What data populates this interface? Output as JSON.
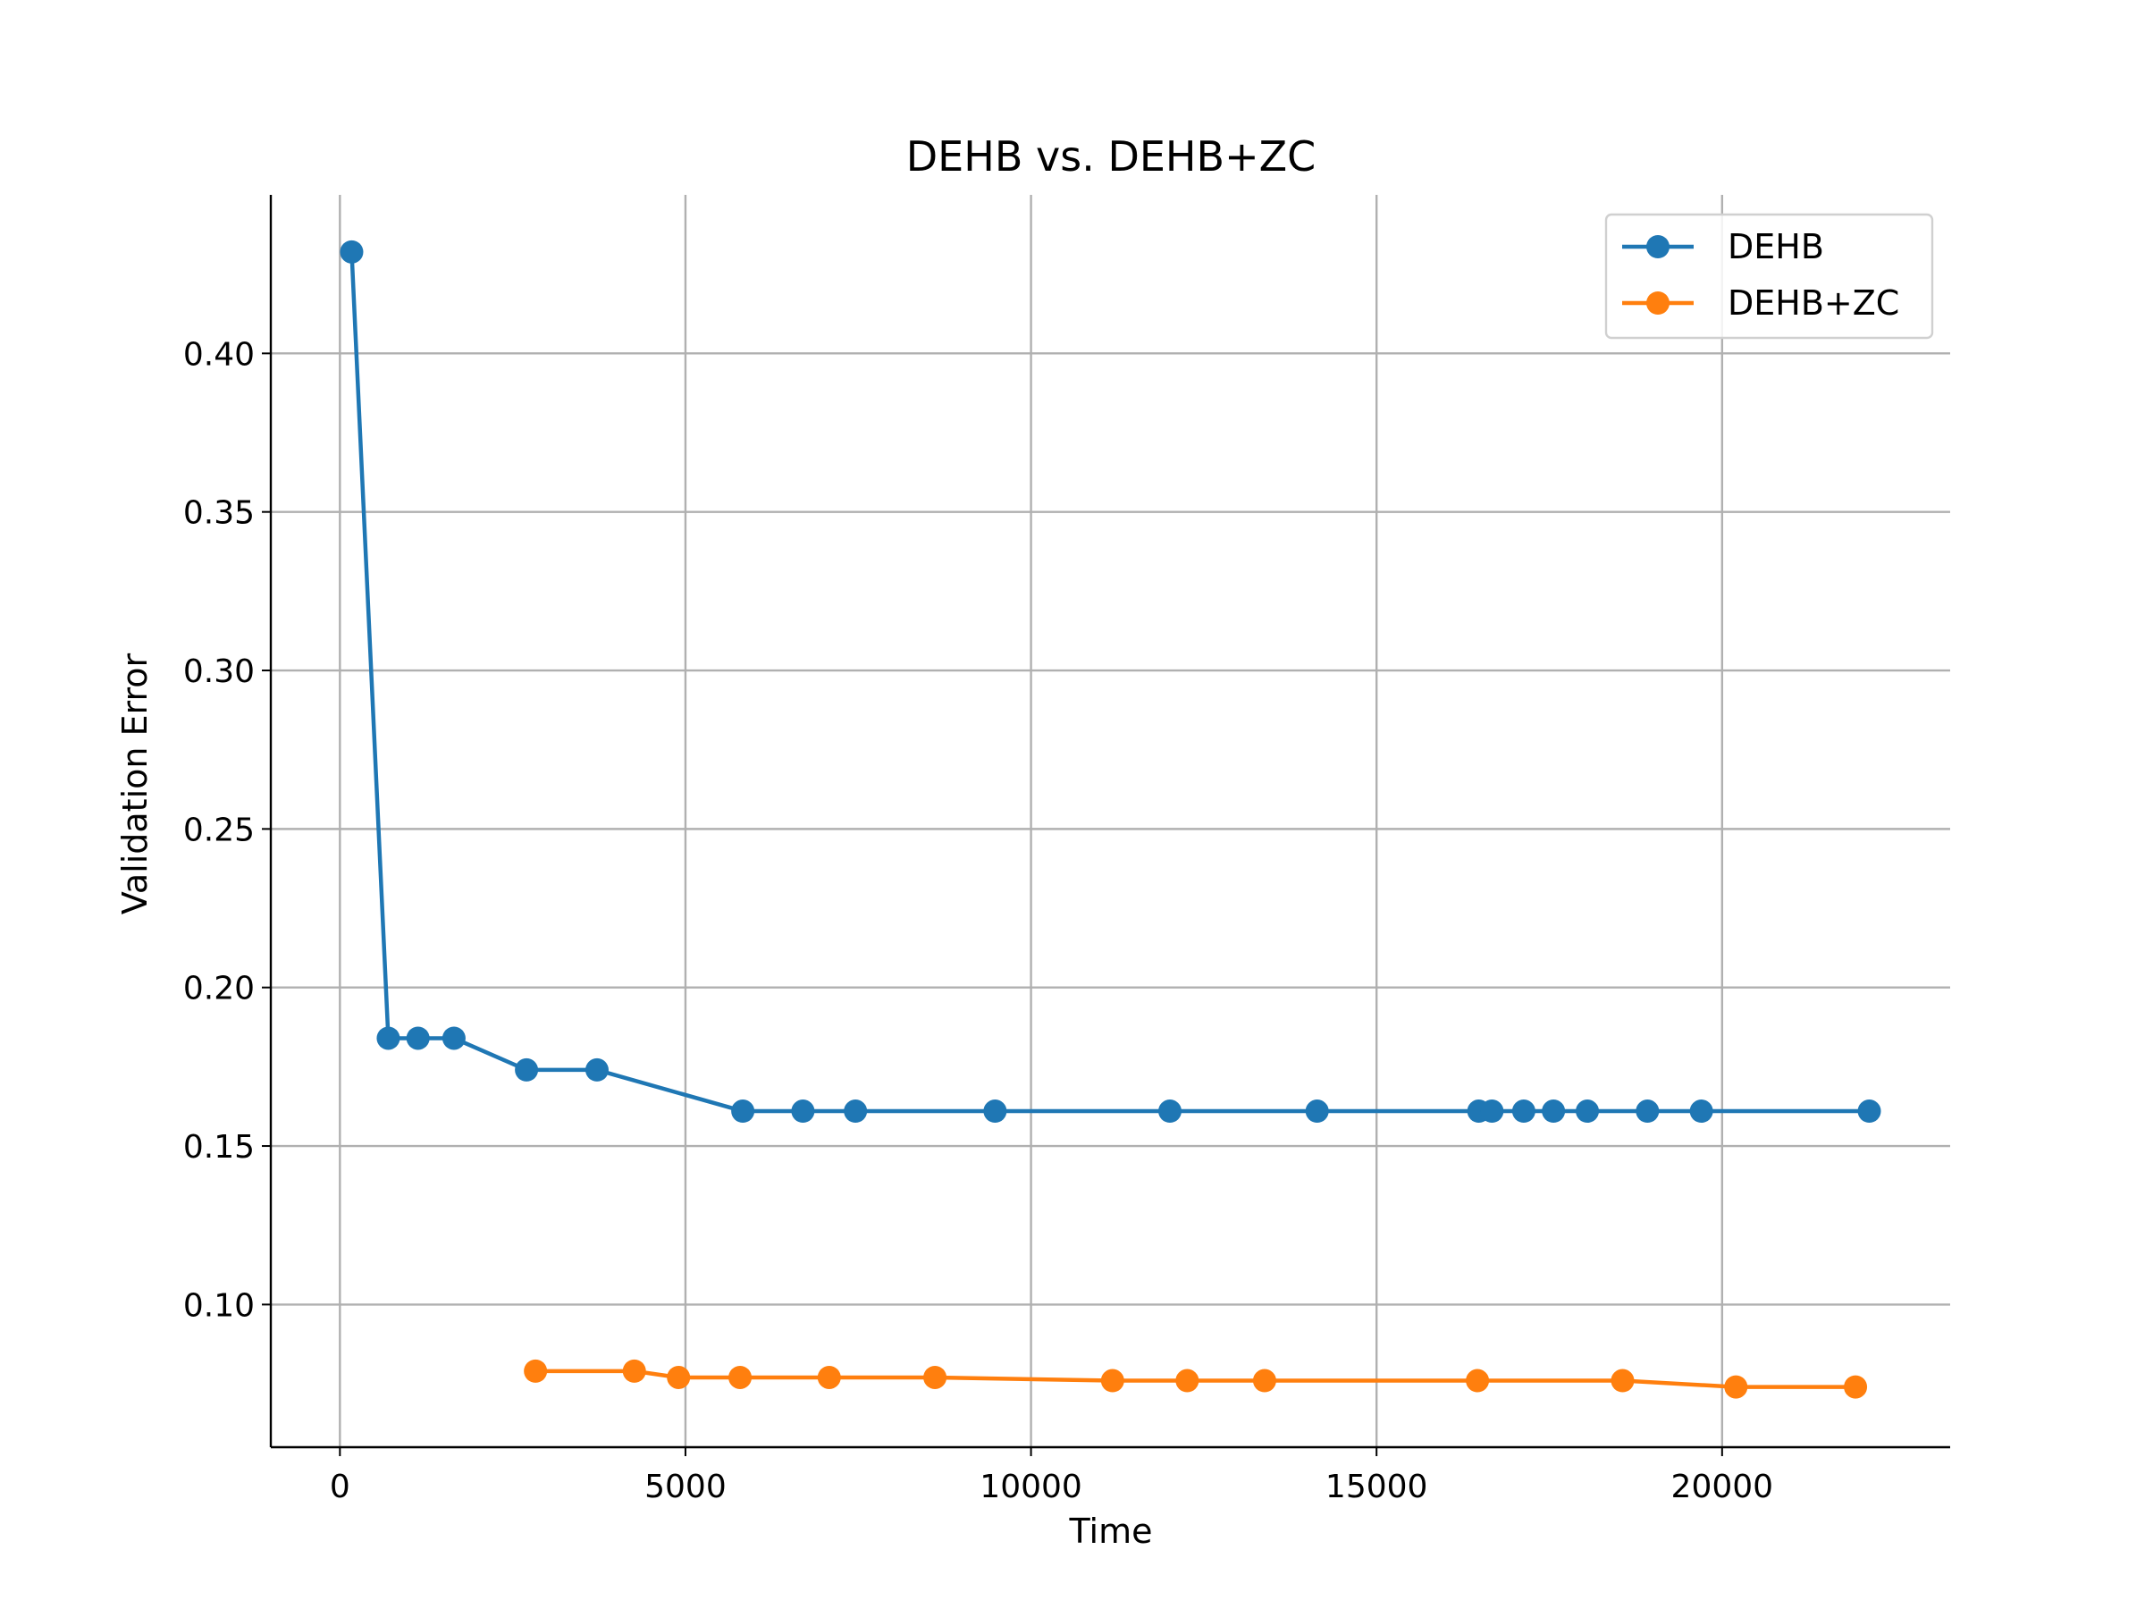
{
  "chart_data": {
    "type": "line",
    "title": "DEHB vs. DEHB+ZC",
    "xlabel": "Time",
    "ylabel": "Validation Error",
    "xlim": [
      -1000,
      23300
    ],
    "ylim": [
      0.055,
      0.45
    ],
    "xticks": [
      0,
      5000,
      10000,
      15000,
      20000
    ],
    "yticks": [
      0.1,
      0.15,
      0.2,
      0.25,
      0.3,
      0.35,
      0.4
    ],
    "grid": true,
    "legend_position": "top-right",
    "series": [
      {
        "name": "DEHB",
        "color": "#1f77b4",
        "x": [
          170,
          700,
          1130,
          1650,
          2700,
          3720,
          5830,
          6700,
          7460,
          9480,
          12010,
          14140,
          16480,
          16670,
          17130,
          17560,
          18050,
          18920,
          19700,
          22130
        ],
        "y": [
          0.432,
          0.184,
          0.184,
          0.184,
          0.174,
          0.174,
          0.161,
          0.161,
          0.161,
          0.161,
          0.161,
          0.161,
          0.161,
          0.161,
          0.161,
          0.161,
          0.161,
          0.161,
          0.161,
          0.161
        ]
      },
      {
        "name": "DEHB+ZC",
        "color": "#ff7f0e",
        "x": [
          2830,
          4260,
          4900,
          5790,
          7080,
          8610,
          11180,
          12260,
          13380,
          16460,
          18560,
          20200,
          21930
        ],
        "y": [
          0.079,
          0.079,
          0.077,
          0.077,
          0.077,
          0.077,
          0.076,
          0.076,
          0.076,
          0.076,
          0.076,
          0.074,
          0.074
        ]
      }
    ]
  }
}
